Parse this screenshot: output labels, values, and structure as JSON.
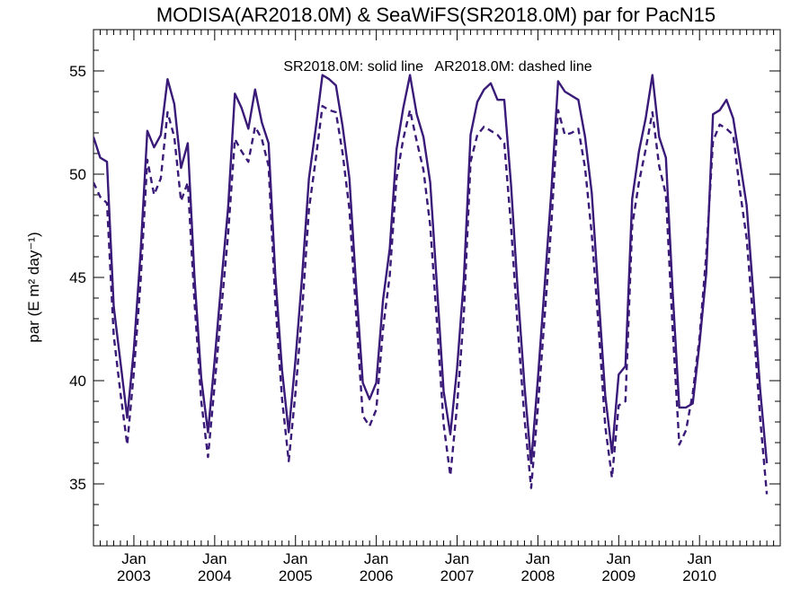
{
  "chart_data": {
    "type": "line",
    "title": "MODISA(AR2018.0M) & SeaWiFS(SR2018.0M)  par for PacN15",
    "ylabel": "par (E m² day⁻¹)",
    "xlabel": "",
    "legend_text": "SR2018.0M: solid line   AR2018.0M: dashed line",
    "ylim": [
      32,
      57
    ],
    "xlim": [
      "2002-07-01",
      "2010-12-31"
    ],
    "y_ticks": [
      35,
      40,
      45,
      50,
      55
    ],
    "x_ticks": [
      {
        "month": "Jan",
        "year": "2003",
        "date": "2003-01-01"
      },
      {
        "month": "Jan",
        "year": "2004",
        "date": "2004-01-01"
      },
      {
        "month": "Jan",
        "year": "2005",
        "date": "2005-01-01"
      },
      {
        "month": "Jan",
        "year": "2006",
        "date": "2006-01-01"
      },
      {
        "month": "Jan",
        "year": "2007",
        "date": "2007-01-01"
      },
      {
        "month": "Jan",
        "year": "2008",
        "date": "2008-01-01"
      },
      {
        "month": "Jan",
        "year": "2009",
        "date": "2009-01-01"
      },
      {
        "month": "Jan",
        "year": "2010",
        "date": "2010-01-01"
      }
    ],
    "line_color": "#3a1a78",
    "grid": false,
    "series": [
      {
        "style": "solid",
        "points": [
          [
            "2002-07-01",
            51.8
          ],
          [
            "2002-08-01",
            50.8
          ],
          [
            "2002-09-01",
            50.6
          ],
          [
            "2002-10-01",
            43.6
          ],
          [
            "2002-11-01",
            40.9
          ],
          [
            "2002-12-01",
            38.2
          ],
          [
            "2003-01-01",
            41.5
          ],
          [
            "2003-02-01",
            46.2
          ],
          [
            "2003-03-01",
            52.1
          ],
          [
            "2003-04-01",
            51.3
          ],
          [
            "2003-05-01",
            51.9
          ],
          [
            "2003-06-01",
            54.6
          ],
          [
            "2003-07-01",
            53.4
          ],
          [
            "2003-08-01",
            50.3
          ],
          [
            "2003-09-01",
            51.5
          ],
          [
            "2003-10-01",
            45.0
          ],
          [
            "2003-11-01",
            40.1
          ],
          [
            "2003-12-01",
            37.5
          ],
          [
            "2004-01-01",
            41.0
          ],
          [
            "2004-02-01",
            44.8
          ],
          [
            "2004-03-01",
            48.4
          ],
          [
            "2004-04-01",
            53.9
          ],
          [
            "2004-05-01",
            53.2
          ],
          [
            "2004-06-01",
            52.2
          ],
          [
            "2004-07-01",
            54.1
          ],
          [
            "2004-08-01",
            52.5
          ],
          [
            "2004-09-01",
            51.5
          ],
          [
            "2004-10-01",
            45.1
          ],
          [
            "2004-11-01",
            40.5
          ],
          [
            "2004-12-01",
            37.5
          ],
          [
            "2005-01-01",
            41.0
          ],
          [
            "2005-02-01",
            45.1
          ],
          [
            "2005-03-01",
            49.8
          ],
          [
            "2005-04-01",
            52.2
          ],
          [
            "2005-05-01",
            54.8
          ],
          [
            "2005-06-01",
            54.6
          ],
          [
            "2005-07-01",
            54.3
          ],
          [
            "2005-08-01",
            52.3
          ],
          [
            "2005-09-01",
            49.8
          ],
          [
            "2005-10-01",
            44.6
          ],
          [
            "2005-11-01",
            39.9
          ],
          [
            "2005-12-01",
            39.1
          ],
          [
            "2006-01-01",
            39.9
          ],
          [
            "2006-02-01",
            43.9
          ],
          [
            "2006-03-01",
            46.4
          ],
          [
            "2006-04-01",
            51.2
          ],
          [
            "2006-05-01",
            53.2
          ],
          [
            "2006-06-01",
            54.8
          ],
          [
            "2006-07-01",
            52.9
          ],
          [
            "2006-08-01",
            51.8
          ],
          [
            "2006-09-01",
            49.6
          ],
          [
            "2006-10-01",
            44.6
          ],
          [
            "2006-11-01",
            39.5
          ],
          [
            "2006-12-01",
            37.4
          ],
          [
            "2007-01-01",
            40.6
          ],
          [
            "2007-02-01",
            44.9
          ],
          [
            "2007-03-01",
            51.9
          ],
          [
            "2007-04-01",
            53.5
          ],
          [
            "2007-05-01",
            54.1
          ],
          [
            "2007-06-01",
            54.4
          ],
          [
            "2007-07-01",
            53.6
          ],
          [
            "2007-08-01",
            53.6
          ],
          [
            "2007-09-01",
            49.5
          ],
          [
            "2007-10-01",
            44.4
          ],
          [
            "2007-11-01",
            39.8
          ],
          [
            "2007-12-01",
            36.0
          ],
          [
            "2008-01-01",
            40.1
          ],
          [
            "2008-02-01",
            44.6
          ],
          [
            "2008-03-01",
            49.2
          ],
          [
            "2008-04-01",
            54.5
          ],
          [
            "2008-05-01",
            54.0
          ],
          [
            "2008-06-01",
            53.8
          ],
          [
            "2008-07-01",
            53.6
          ],
          [
            "2008-08-01",
            51.8
          ],
          [
            "2008-09-01",
            49.1
          ],
          [
            "2008-10-01",
            44.2
          ],
          [
            "2008-11-01",
            39.3
          ],
          [
            "2008-12-01",
            36.5
          ],
          [
            "2009-01-01",
            40.3
          ],
          [
            "2009-02-01",
            40.7
          ],
          [
            "2009-03-01",
            48.8
          ],
          [
            "2009-04-01",
            51.1
          ],
          [
            "2009-05-01",
            52.7
          ],
          [
            "2009-06-01",
            54.8
          ],
          [
            "2009-07-01",
            51.8
          ],
          [
            "2009-08-01",
            50.8
          ],
          [
            "2009-09-01",
            44.4
          ],
          [
            "2009-10-01",
            38.7
          ],
          [
            "2009-11-01",
            38.7
          ],
          [
            "2009-12-01",
            38.9
          ],
          [
            "2010-01-01",
            41.8
          ],
          [
            "2010-02-01",
            45.2
          ],
          [
            "2010-03-01",
            52.9
          ],
          [
            "2010-04-01",
            53.1
          ],
          [
            "2010-05-01",
            53.6
          ],
          [
            "2010-06-01",
            52.7
          ],
          [
            "2010-07-01",
            50.6
          ],
          [
            "2010-08-01",
            48.5
          ],
          [
            "2010-09-01",
            44.2
          ],
          [
            "2010-10-01",
            39.6
          ],
          [
            "2010-11-01",
            36.0
          ]
        ]
      },
      {
        "style": "dashed",
        "points": [
          [
            "2002-07-01",
            49.6
          ],
          [
            "2002-08-01",
            48.9
          ],
          [
            "2002-09-01",
            48.6
          ],
          [
            "2002-10-01",
            42.2
          ],
          [
            "2002-11-01",
            39.4
          ],
          [
            "2002-12-01",
            36.9
          ],
          [
            "2003-01-01",
            40.4
          ],
          [
            "2003-02-01",
            44.8
          ],
          [
            "2003-03-01",
            50.7
          ],
          [
            "2003-04-01",
            49.0
          ],
          [
            "2003-05-01",
            49.8
          ],
          [
            "2003-06-01",
            53.0
          ],
          [
            "2003-07-01",
            51.8
          ],
          [
            "2003-08-01",
            48.7
          ],
          [
            "2003-09-01",
            49.6
          ],
          [
            "2003-10-01",
            43.8
          ],
          [
            "2003-11-01",
            39.0
          ],
          [
            "2003-12-01",
            36.3
          ],
          [
            "2004-01-01",
            39.8
          ],
          [
            "2004-02-01",
            43.5
          ],
          [
            "2004-03-01",
            47.1
          ],
          [
            "2004-04-01",
            51.7
          ],
          [
            "2004-05-01",
            51.1
          ],
          [
            "2004-06-01",
            50.6
          ],
          [
            "2004-07-01",
            52.3
          ],
          [
            "2004-08-01",
            51.7
          ],
          [
            "2004-09-01",
            50.4
          ],
          [
            "2004-10-01",
            43.8
          ],
          [
            "2004-11-01",
            39.1
          ],
          [
            "2004-12-01",
            36.1
          ],
          [
            "2005-01-01",
            39.4
          ],
          [
            "2005-02-01",
            43.4
          ],
          [
            "2005-03-01",
            48.3
          ],
          [
            "2005-04-01",
            50.7
          ],
          [
            "2005-05-01",
            53.3
          ],
          [
            "2005-06-01",
            53.1
          ],
          [
            "2005-07-01",
            53.0
          ],
          [
            "2005-08-01",
            51.0
          ],
          [
            "2005-09-01",
            48.3
          ],
          [
            "2005-10-01",
            43.2
          ],
          [
            "2005-11-01",
            38.3
          ],
          [
            "2005-12-01",
            37.8
          ],
          [
            "2006-01-01",
            38.6
          ],
          [
            "2006-02-01",
            42.5
          ],
          [
            "2006-03-01",
            45.1
          ],
          [
            "2006-04-01",
            49.8
          ],
          [
            "2006-05-01",
            51.7
          ],
          [
            "2006-06-01",
            53.1
          ],
          [
            "2006-07-01",
            51.6
          ],
          [
            "2006-08-01",
            50.2
          ],
          [
            "2006-09-01",
            47.5
          ],
          [
            "2006-10-01",
            42.8
          ],
          [
            "2006-11-01",
            37.9
          ],
          [
            "2006-12-01",
            35.4
          ],
          [
            "2007-01-01",
            38.8
          ],
          [
            "2007-02-01",
            43.2
          ],
          [
            "2007-03-01",
            50.6
          ],
          [
            "2007-04-01",
            51.9
          ],
          [
            "2007-05-01",
            52.3
          ],
          [
            "2007-06-01",
            52.1
          ],
          [
            "2007-07-01",
            51.9
          ],
          [
            "2007-08-01",
            51.5
          ],
          [
            "2007-09-01",
            47.5
          ],
          [
            "2007-10-01",
            42.6
          ],
          [
            "2007-11-01",
            38.2
          ],
          [
            "2007-12-01",
            34.8
          ],
          [
            "2008-01-01",
            38.7
          ],
          [
            "2008-02-01",
            43.1
          ],
          [
            "2008-03-01",
            47.6
          ],
          [
            "2008-04-01",
            53.1
          ],
          [
            "2008-05-01",
            51.9
          ],
          [
            "2008-06-01",
            52.0
          ],
          [
            "2008-07-01",
            52.2
          ],
          [
            "2008-08-01",
            50.3
          ],
          [
            "2008-09-01",
            47.1
          ],
          [
            "2008-10-01",
            42.7
          ],
          [
            "2008-11-01",
            37.8
          ],
          [
            "2008-12-01",
            35.3
          ],
          [
            "2009-01-01",
            38.8
          ],
          [
            "2009-02-01",
            39.0
          ],
          [
            "2009-03-01",
            47.5
          ],
          [
            "2009-04-01",
            49.6
          ],
          [
            "2009-05-01",
            51.2
          ],
          [
            "2009-06-01",
            53.0
          ],
          [
            "2009-07-01",
            50.4
          ],
          [
            "2009-08-01",
            49.0
          ],
          [
            "2009-09-01",
            42.6
          ],
          [
            "2009-10-01",
            36.9
          ],
          [
            "2009-11-01",
            37.6
          ],
          [
            "2009-12-01",
            39.4
          ],
          [
            "2010-01-01",
            42.1
          ],
          [
            "2010-02-01",
            46.1
          ],
          [
            "2010-03-01",
            51.6
          ],
          [
            "2010-04-01",
            52.4
          ],
          [
            "2010-05-01",
            52.2
          ],
          [
            "2010-06-01",
            51.9
          ],
          [
            "2010-07-01",
            49.2
          ],
          [
            "2010-08-01",
            46.9
          ],
          [
            "2010-09-01",
            42.8
          ],
          [
            "2010-10-01",
            38.2
          ],
          [
            "2010-11-01",
            34.5
          ]
        ]
      }
    ]
  }
}
